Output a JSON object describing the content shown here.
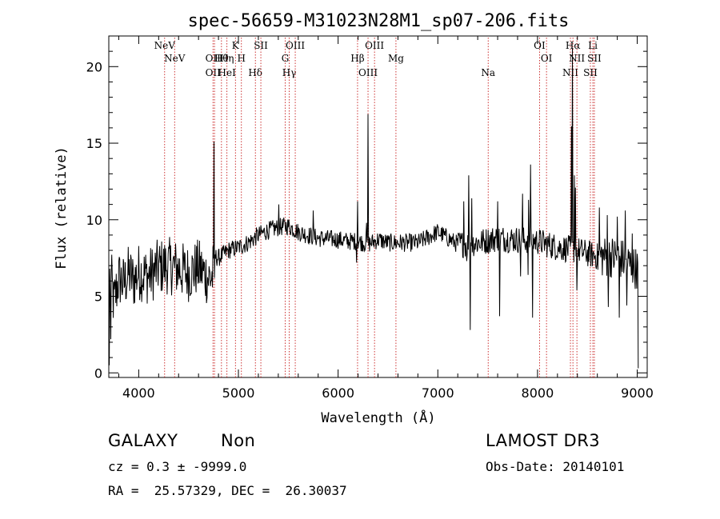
{
  "chart_data": {
    "type": "line",
    "title": "spec-56659-M31023N28M1_sp07-206.fits",
    "xlabel": "Wavelength (Å)",
    "ylabel": "Flux (relative)",
    "xlim": [
      3700,
      9100
    ],
    "ylim": [
      -0.3,
      22
    ],
    "x_ticks": [
      4000,
      5000,
      6000,
      7000,
      8000,
      9000
    ],
    "y_ticks": [
      0,
      5,
      10,
      15,
      20
    ],
    "grid": false,
    "series": [
      {
        "name": "spectrum",
        "anchors": [
          [
            3700,
            3.5
          ],
          [
            3720,
            6.5
          ],
          [
            3750,
            4.5
          ],
          [
            3800,
            6.2
          ],
          [
            3850,
            5.8
          ],
          [
            3900,
            6.5
          ],
          [
            3950,
            6.0
          ],
          [
            4000,
            6.6
          ],
          [
            4100,
            6.3
          ],
          [
            4200,
            6.9
          ],
          [
            4300,
            7.0
          ],
          [
            4400,
            6.8
          ],
          [
            4500,
            6.5
          ],
          [
            4600,
            6.9
          ],
          [
            4700,
            6.2
          ],
          [
            4740,
            6.3
          ],
          [
            4760,
            7.6
          ],
          [
            4800,
            7.5
          ],
          [
            4900,
            8.0
          ],
          [
            5000,
            8.2
          ],
          [
            5100,
            8.5
          ],
          [
            5200,
            9.0
          ],
          [
            5300,
            9.3
          ],
          [
            5400,
            9.5
          ],
          [
            5500,
            9.6
          ],
          [
            5600,
            9.2
          ],
          [
            5800,
            8.8
          ],
          [
            6000,
            8.7
          ],
          [
            6100,
            8.6
          ],
          [
            6200,
            8.6
          ],
          [
            6300,
            8.4
          ],
          [
            6400,
            8.7
          ],
          [
            6500,
            8.5
          ],
          [
            6600,
            8.5
          ],
          [
            6800,
            8.5
          ],
          [
            7000,
            9.2
          ],
          [
            7200,
            8.4
          ],
          [
            7400,
            8.5
          ],
          [
            7600,
            8.8
          ],
          [
            7800,
            8.7
          ],
          [
            8000,
            8.6
          ],
          [
            8200,
            8.2
          ],
          [
            8400,
            8.0
          ],
          [
            8600,
            7.6
          ],
          [
            8800,
            7.6
          ],
          [
            9000,
            6.8
          ]
        ],
        "features": [
          [
            3705,
            0.5
          ],
          [
            3712,
            6.8
          ],
          [
            3722,
            2.2
          ],
          [
            4755,
            15.1
          ],
          [
            4762,
            6.2
          ],
          [
            6300,
            16.9
          ],
          [
            6285,
            9.8
          ],
          [
            6195,
            11.2
          ],
          [
            6185,
            7.2
          ],
          [
            5405,
            11.0
          ],
          [
            5750,
            10.6
          ],
          [
            7260,
            11.2
          ],
          [
            7290,
            7.3
          ],
          [
            7310,
            12.9
          ],
          [
            7325,
            2.8
          ],
          [
            7340,
            11.4
          ],
          [
            7600,
            11.2
          ],
          [
            7620,
            3.7
          ],
          [
            7850,
            11.7
          ],
          [
            7830,
            6.3
          ],
          [
            7910,
            11.3
          ],
          [
            7905,
            6.4
          ],
          [
            7930,
            13.6
          ],
          [
            7950,
            3.6
          ],
          [
            8350,
            21.2
          ],
          [
            8340,
            16.1
          ],
          [
            8370,
            12.9
          ],
          [
            8395,
            5.4
          ],
          [
            8380,
            12.1
          ],
          [
            8620,
            10.8
          ],
          [
            8700,
            10.3
          ],
          [
            8710,
            4.3
          ],
          [
            8800,
            10.2
          ],
          [
            8820,
            3.6
          ],
          [
            8880,
            10.6
          ],
          [
            8895,
            4.4
          ],
          [
            8950,
            9.1
          ],
          [
            9008,
            7.5
          ],
          [
            9012,
            0.3
          ]
        ]
      }
    ],
    "lines": [
      {
        "x": 4260,
        "labels": [
          "NeV"
        ]
      },
      {
        "x": 4360,
        "labels": [
          "NeV"
        ]
      },
      {
        "x": 4745,
        "labels": [
          "OII",
          "OII"
        ]
      },
      {
        "x": 4760,
        "labels": [
          ""
        ]
      },
      {
        "x": 4830,
        "labels": [
          "Hθ"
        ]
      },
      {
        "x": 4885,
        "labels": [
          "Hη",
          "HeI"
        ]
      },
      {
        "x": 4970,
        "labels": [
          "K"
        ]
      },
      {
        "x": 5030,
        "labels": [
          "H"
        ]
      },
      {
        "x": 5170,
        "labels": [
          "Hδ"
        ]
      },
      {
        "x": 5225,
        "labels": [
          "SII"
        ]
      },
      {
        "x": 5470,
        "labels": [
          "G"
        ]
      },
      {
        "x": 5510,
        "labels": [
          "Hγ"
        ]
      },
      {
        "x": 5570,
        "labels": [
          "OIII"
        ]
      },
      {
        "x": 6195,
        "labels": [
          "Hβ"
        ]
      },
      {
        "x": 6300,
        "labels": [
          "OIII"
        ]
      },
      {
        "x": 6365,
        "labels": [
          "OIII"
        ]
      },
      {
        "x": 6580,
        "labels": [
          "Mg"
        ]
      },
      {
        "x": 7505,
        "labels": [
          "Na"
        ]
      },
      {
        "x": 8020,
        "labels": [
          "OI"
        ]
      },
      {
        "x": 8090,
        "labels": [
          "OI"
        ]
      },
      {
        "x": 8330,
        "labels": [
          "NII"
        ]
      },
      {
        "x": 8355,
        "labels": [
          "Hα"
        ]
      },
      {
        "x": 8395,
        "labels": [
          "NII"
        ]
      },
      {
        "x": 8530,
        "labels": [
          "SII"
        ]
      },
      {
        "x": 8555,
        "labels": [
          "Li"
        ]
      },
      {
        "x": 8570,
        "labels": [
          "SII"
        ]
      }
    ]
  },
  "info": {
    "object_class": "GALAXY",
    "subclass": "Non",
    "survey": "LAMOST DR3",
    "cz": "cz = 0.3 ± -9999.0",
    "obs_date": "Obs-Date: 20140101",
    "coords": "RA =  25.57329, DEC =  26.30037"
  },
  "colors": {
    "spectrum": "#000000",
    "lines": "#c00000",
    "axes": "#000000"
  }
}
